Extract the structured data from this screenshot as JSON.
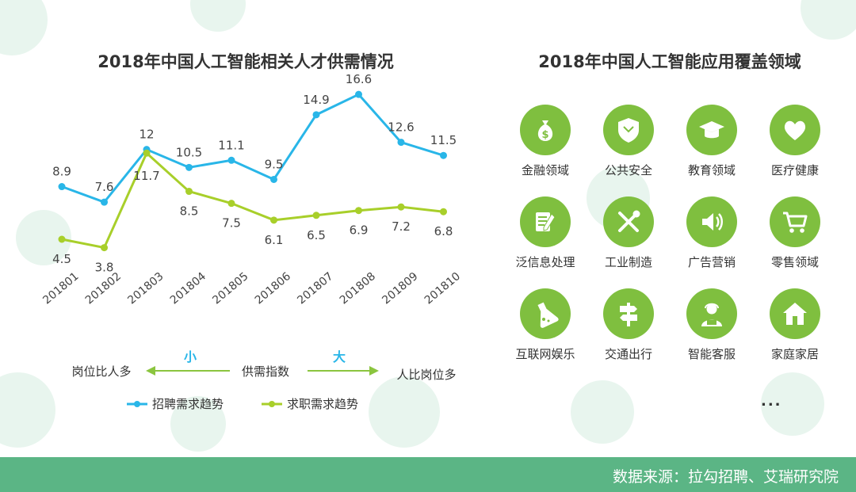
{
  "left_panel": {
    "title": "2018年中国人工智能相关人才供需情况"
  },
  "chart_data": {
    "type": "line",
    "categories": [
      "201801",
      "201802",
      "201803",
      "201804",
      "201805",
      "201806",
      "201807",
      "201808",
      "201809",
      "201810"
    ],
    "series": [
      {
        "name": "招聘需求趋势",
        "color": "#29b6e8",
        "values": [
          8.9,
          7.6,
          12,
          10.5,
          11.1,
          9.5,
          14.9,
          16.6,
          12.6,
          11.5
        ]
      },
      {
        "name": "求职需求趋势",
        "color": "#a8cf2a",
        "values": [
          4.5,
          3.8,
          11.7,
          8.5,
          7.5,
          6.1,
          6.5,
          6.9,
          7.2,
          6.8
        ]
      }
    ],
    "ylim": [
      0,
      18
    ],
    "legend_position": "bottom-left",
    "grid": false,
    "annotations": {
      "center": "供需指数",
      "left_arrow_tag": "小",
      "left_arrow_text": "岗位比人多",
      "right_arrow_tag": "大",
      "right_arrow_text": "人比岗位多",
      "arrow_color": "#8bc53f",
      "tag_color": "#29b6e8"
    }
  },
  "right_panel": {
    "title": "2018年中国人工智能应用覆盖领域",
    "icon_color": "#7fbf3f",
    "items": [
      {
        "label": "金融领域",
        "icon": "money-bag-icon"
      },
      {
        "label": "公共安全",
        "icon": "shield-icon"
      },
      {
        "label": "教育领域",
        "icon": "graduation-cap-icon"
      },
      {
        "label": "医疗健康",
        "icon": "heart-icon"
      },
      {
        "label": "泛信息处理",
        "icon": "notepad-pencil-icon"
      },
      {
        "label": "工业制造",
        "icon": "wrench-screwdriver-icon"
      },
      {
        "label": "广告营销",
        "icon": "speaker-icon"
      },
      {
        "label": "零售领域",
        "icon": "shopping-cart-icon"
      },
      {
        "label": "互联网娱乐",
        "icon": "flask-icon"
      },
      {
        "label": "交通出行",
        "icon": "signpost-icon"
      },
      {
        "label": "智能客服",
        "icon": "customer-service-icon"
      },
      {
        "label": "家庭家居",
        "icon": "house-icon"
      }
    ],
    "more": "..."
  },
  "footer": {
    "source": "数据来源：拉勾招聘、艾瑞研究院",
    "color": "#5bb585"
  }
}
